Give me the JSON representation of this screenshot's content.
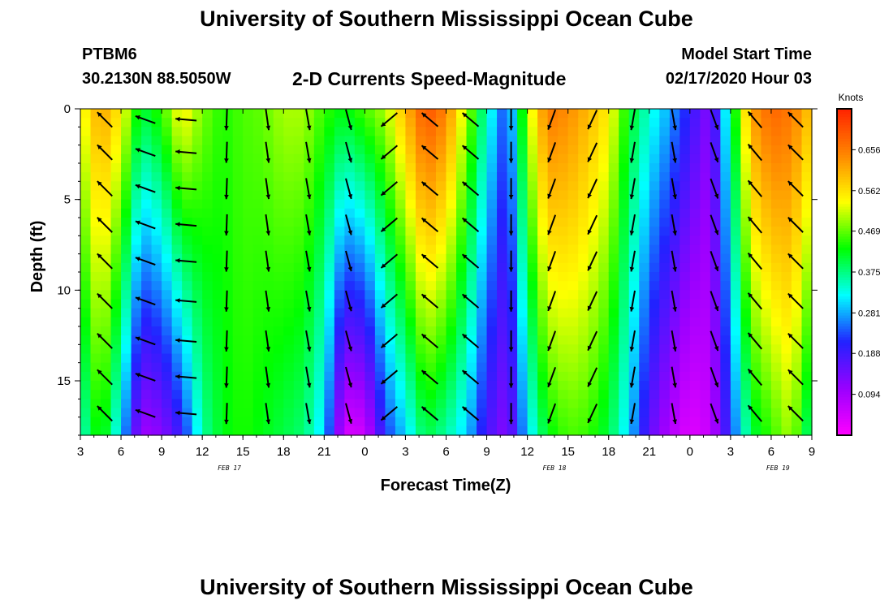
{
  "page": {
    "title_top": "University of Southern Mississippi Ocean Cube",
    "title_bottom": "University of Southern Mississippi Ocean Cube",
    "station_id": "PTBM6",
    "station_coords": "30.2130N 88.5050W",
    "plot_title": "2-D Currents Speed-Magnitude",
    "model_start_label": "Model Start Time",
    "model_start_value": "02/17/2020 Hour 03"
  },
  "chart_data": {
    "type": "heatmap",
    "title": "2-D Currents Speed-Magnitude",
    "xlabel": "Forecast Time(Z)",
    "ylabel": "Depth (ft)",
    "colorbar_label": "Knots",
    "xlim": [
      3,
      57
    ],
    "ylim": [
      0,
      18
    ],
    "y_inverted": true,
    "x_ticks": [
      {
        "x": 3,
        "label": "3"
      },
      {
        "x": 6,
        "label": "6"
      },
      {
        "x": 9,
        "label": "9"
      },
      {
        "x": 12,
        "label": "12"
      },
      {
        "x": 15,
        "label": "15"
      },
      {
        "x": 18,
        "label": "18"
      },
      {
        "x": 21,
        "label": "21"
      },
      {
        "x": 24,
        "label": "0"
      },
      {
        "x": 27,
        "label": "3"
      },
      {
        "x": 30,
        "label": "6"
      },
      {
        "x": 33,
        "label": "9"
      },
      {
        "x": 36,
        "label": "12"
      },
      {
        "x": 39,
        "label": "15"
      },
      {
        "x": 42,
        "label": "18"
      },
      {
        "x": 45,
        "label": "21"
      },
      {
        "x": 48,
        "label": "0"
      },
      {
        "x": 51,
        "label": "3"
      },
      {
        "x": 54,
        "label": "6"
      },
      {
        "x": 57,
        "label": "9"
      }
    ],
    "date_labels": [
      {
        "x": 14,
        "label": "FEB 17"
      },
      {
        "x": 38,
        "label": "FEB 18"
      },
      {
        "x": 54.5,
        "label": "FEB 19"
      }
    ],
    "y_ticks": [
      0,
      5,
      10,
      15
    ],
    "colorbar": {
      "min": 0.0,
      "max": 0.75,
      "ticks": [
        0.094,
        0.188,
        0.281,
        0.375,
        0.469,
        0.562,
        0.656
      ],
      "colors": [
        "#ff00ff",
        "#9900ff",
        "#2222ff",
        "#00ffff",
        "#00ff00",
        "#ffff00",
        "#ff8800",
        "#ff2200"
      ]
    },
    "speed_profiles": [
      {
        "x": 3,
        "surface": 0.52,
        "bottom": 0.34
      },
      {
        "x": 4.5,
        "surface": 0.62,
        "bottom": 0.45
      },
      {
        "x": 6,
        "surface": 0.55,
        "bottom": 0.3
      },
      {
        "x": 7.5,
        "surface": 0.4,
        "bottom": 0.1
      },
      {
        "x": 9,
        "surface": 0.45,
        "bottom": 0.12
      },
      {
        "x": 10.5,
        "surface": 0.55,
        "bottom": 0.2
      },
      {
        "x": 12,
        "surface": 0.48,
        "bottom": 0.36
      },
      {
        "x": 13.5,
        "surface": 0.44,
        "bottom": 0.42
      },
      {
        "x": 15,
        "surface": 0.46,
        "bottom": 0.44
      },
      {
        "x": 16.5,
        "surface": 0.47,
        "bottom": 0.42
      },
      {
        "x": 18,
        "surface": 0.5,
        "bottom": 0.4
      },
      {
        "x": 19.5,
        "surface": 0.5,
        "bottom": 0.38
      },
      {
        "x": 21,
        "surface": 0.45,
        "bottom": 0.3
      },
      {
        "x": 22.5,
        "surface": 0.42,
        "bottom": 0.04
      },
      {
        "x": 24,
        "surface": 0.46,
        "bottom": 0.05
      },
      {
        "x": 25.5,
        "surface": 0.5,
        "bottom": 0.22
      },
      {
        "x": 27,
        "surface": 0.6,
        "bottom": 0.3
      },
      {
        "x": 28.5,
        "surface": 0.7,
        "bottom": 0.4
      },
      {
        "x": 30,
        "surface": 0.65,
        "bottom": 0.36
      },
      {
        "x": 31.5,
        "surface": 0.5,
        "bottom": 0.3
      },
      {
        "x": 33,
        "surface": 0.35,
        "bottom": 0.18
      },
      {
        "x": 34.5,
        "surface": 0.22,
        "bottom": 0.12
      },
      {
        "x": 36,
        "surface": 0.5,
        "bottom": 0.3
      },
      {
        "x": 37.5,
        "surface": 0.66,
        "bottom": 0.42
      },
      {
        "x": 39,
        "surface": 0.64,
        "bottom": 0.46
      },
      {
        "x": 40.5,
        "surface": 0.6,
        "bottom": 0.45
      },
      {
        "x": 42,
        "surface": 0.55,
        "bottom": 0.4
      },
      {
        "x": 43.5,
        "surface": 0.42,
        "bottom": 0.3
      },
      {
        "x": 45,
        "surface": 0.34,
        "bottom": 0.16
      },
      {
        "x": 46.5,
        "surface": 0.28,
        "bottom": 0.08
      },
      {
        "x": 48,
        "surface": 0.2,
        "bottom": 0.03
      },
      {
        "x": 49.5,
        "surface": 0.12,
        "bottom": 0.06
      },
      {
        "x": 51,
        "surface": 0.38,
        "bottom": 0.22
      },
      {
        "x": 52.5,
        "surface": 0.62,
        "bottom": 0.4
      },
      {
        "x": 54,
        "surface": 0.68,
        "bottom": 0.45
      },
      {
        "x": 55.5,
        "surface": 0.66,
        "bottom": 0.5
      },
      {
        "x": 57,
        "surface": 0.58,
        "bottom": 0.36
      }
    ],
    "vector_columns": [
      {
        "x": 4.8,
        "dir": -135
      },
      {
        "x": 7.8,
        "dir": 200
      },
      {
        "x": 10.8,
        "dir": 185
      },
      {
        "x": 13.8,
        "dir": 92
      },
      {
        "x": 16.8,
        "dir": 82
      },
      {
        "x": 19.8,
        "dir": 80
      },
      {
        "x": 22.8,
        "dir": 75
      },
      {
        "x": 25.8,
        "dir": 140
      },
      {
        "x": 28.8,
        "dir": -140
      },
      {
        "x": 31.8,
        "dir": -140
      },
      {
        "x": 34.8,
        "dir": 90
      },
      {
        "x": 37.8,
        "dir": 110
      },
      {
        "x": 40.8,
        "dir": 115
      },
      {
        "x": 43.8,
        "dir": 100
      },
      {
        "x": 46.8,
        "dir": 80
      },
      {
        "x": 49.8,
        "dir": 70
      },
      {
        "x": 52.8,
        "dir": -130
      },
      {
        "x": 55.8,
        "dir": -135
      }
    ],
    "vector_depths": [
      0.6,
      2.4,
      4.4,
      6.4,
      8.4,
      10.6,
      12.8,
      14.8,
      16.8
    ]
  }
}
